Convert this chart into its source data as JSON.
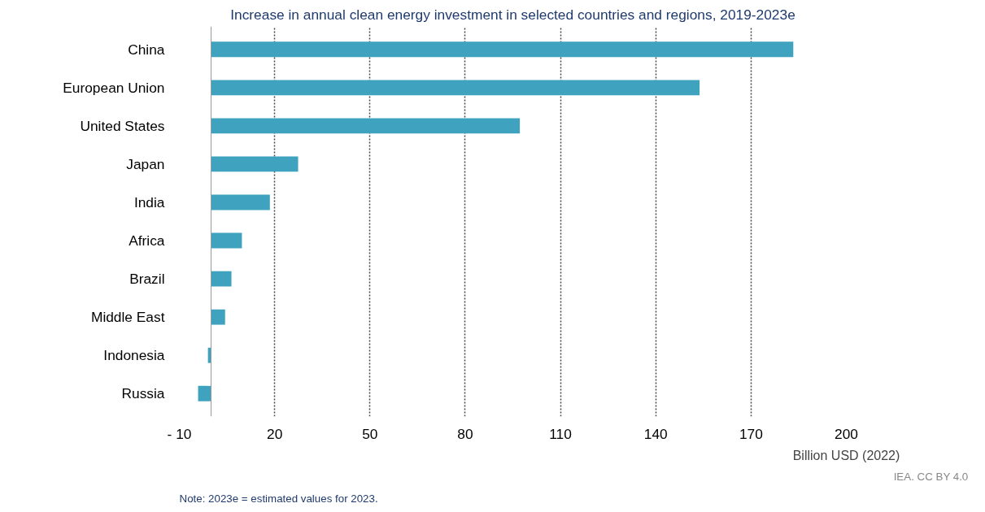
{
  "chart_data": {
    "type": "bar",
    "orientation": "horizontal",
    "title": "Increase in annual clean energy investment in selected countries and regions, 2019-2023e",
    "xlabel": "Billion USD (2022)",
    "categories": [
      "China",
      "European Union",
      "United States",
      "Japan",
      "India",
      "Africa",
      "Brazil",
      "Middle East",
      "Indonesia",
      "Russia"
    ],
    "values": [
      183.3,
      153.8,
      97.2,
      27.4,
      18.5,
      9.7,
      6.4,
      4.4,
      -1.0,
      -4.1
    ],
    "color": "#3fa3bf",
    "xlim": [
      -10,
      200
    ],
    "xticks": [
      {
        "value": -10,
        "label": "- 10"
      },
      20,
      50,
      80,
      110,
      140,
      170,
      200
    ],
    "grid": "x",
    "annotations": [
      "IEA. CC BY 4.0",
      "Note:  2023e = estimated values for 2023."
    ]
  }
}
